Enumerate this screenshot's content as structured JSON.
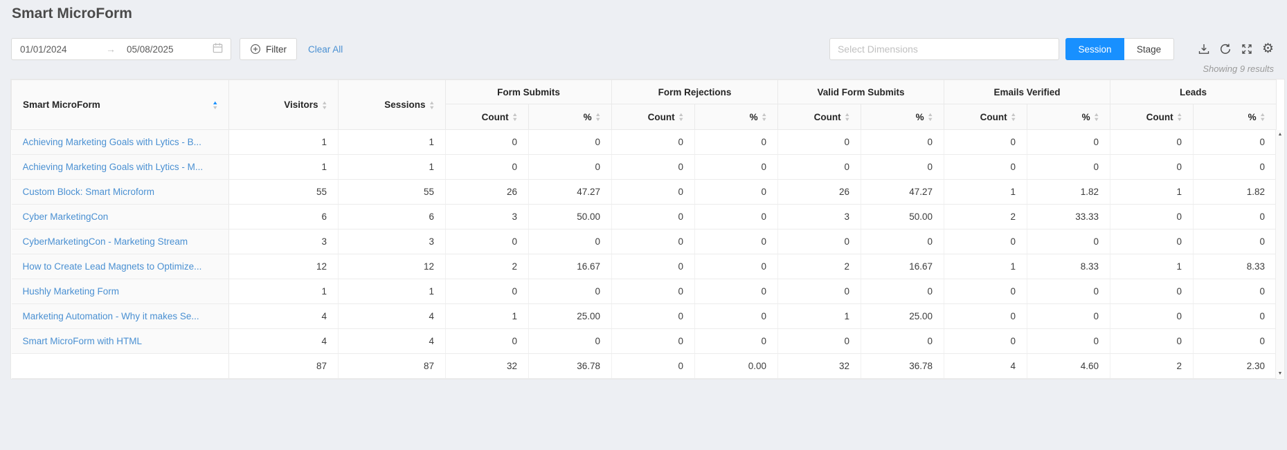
{
  "page_title": "Smart MicroForm",
  "toolbar": {
    "date_start": "01/01/2024",
    "date_end": "05/08/2025",
    "filter_label": "Filter",
    "clear_all_label": "Clear All",
    "dimensions_placeholder": "Select Dimensions",
    "toggle_active": "Session",
    "toggle_inactive": "Stage",
    "action_icons": [
      "download-icon",
      "refresh-icon",
      "expand-icon",
      "gear-icon"
    ]
  },
  "results_note": "Showing 9 results",
  "colors": {
    "accent": "#1890ff",
    "link": "#4a90d2",
    "page_background": "#edeff3",
    "header_background": "#fafafa"
  },
  "table": {
    "first_column_header": "Smart MicroForm",
    "first_column_sort": "ascending",
    "scalar_columns": [
      "Visitors",
      "Sessions"
    ],
    "group_columns": [
      "Form Submits",
      "Form Rejections",
      "Valid Form Submits",
      "Emails Verified",
      "Leads"
    ],
    "sub_columns": [
      "Count",
      "%"
    ],
    "rows": [
      {
        "name": "Achieving Marketing Goals with Lytics - B...",
        "values": [
          "1",
          "1",
          "0",
          "0",
          "0",
          "0",
          "0",
          "0",
          "0",
          "0",
          "0",
          "0"
        ]
      },
      {
        "name": "Achieving Marketing Goals with Lytics - M...",
        "values": [
          "1",
          "1",
          "0",
          "0",
          "0",
          "0",
          "0",
          "0",
          "0",
          "0",
          "0",
          "0"
        ]
      },
      {
        "name": "Custom Block: Smart Microform",
        "values": [
          "55",
          "55",
          "26",
          "47.27",
          "0",
          "0",
          "26",
          "47.27",
          "1",
          "1.82",
          "1",
          "1.82"
        ]
      },
      {
        "name": "Cyber MarketingCon",
        "values": [
          "6",
          "6",
          "3",
          "50.00",
          "0",
          "0",
          "3",
          "50.00",
          "2",
          "33.33",
          "0",
          "0"
        ]
      },
      {
        "name": "CyberMarketingCon - Marketing Stream",
        "values": [
          "3",
          "3",
          "0",
          "0",
          "0",
          "0",
          "0",
          "0",
          "0",
          "0",
          "0",
          "0"
        ]
      },
      {
        "name": "How to Create Lead Magnets to Optimize...",
        "values": [
          "12",
          "12",
          "2",
          "16.67",
          "0",
          "0",
          "2",
          "16.67",
          "1",
          "8.33",
          "1",
          "8.33"
        ]
      },
      {
        "name": "Hushly Marketing Form",
        "values": [
          "1",
          "1",
          "0",
          "0",
          "0",
          "0",
          "0",
          "0",
          "0",
          "0",
          "0",
          "0"
        ]
      },
      {
        "name": "Marketing Automation - Why it makes Se...",
        "values": [
          "4",
          "4",
          "1",
          "25.00",
          "0",
          "0",
          "1",
          "25.00",
          "0",
          "0",
          "0",
          "0"
        ]
      },
      {
        "name": "Smart MicroForm with HTML",
        "values": [
          "4",
          "4",
          "0",
          "0",
          "0",
          "0",
          "0",
          "0",
          "0",
          "0",
          "0",
          "0"
        ]
      }
    ],
    "totals": {
      "name": "",
      "values": [
        "87",
        "87",
        "32",
        "36.78",
        "0",
        "0.00",
        "32",
        "36.78",
        "4",
        "4.60",
        "2",
        "2.30"
      ]
    }
  }
}
